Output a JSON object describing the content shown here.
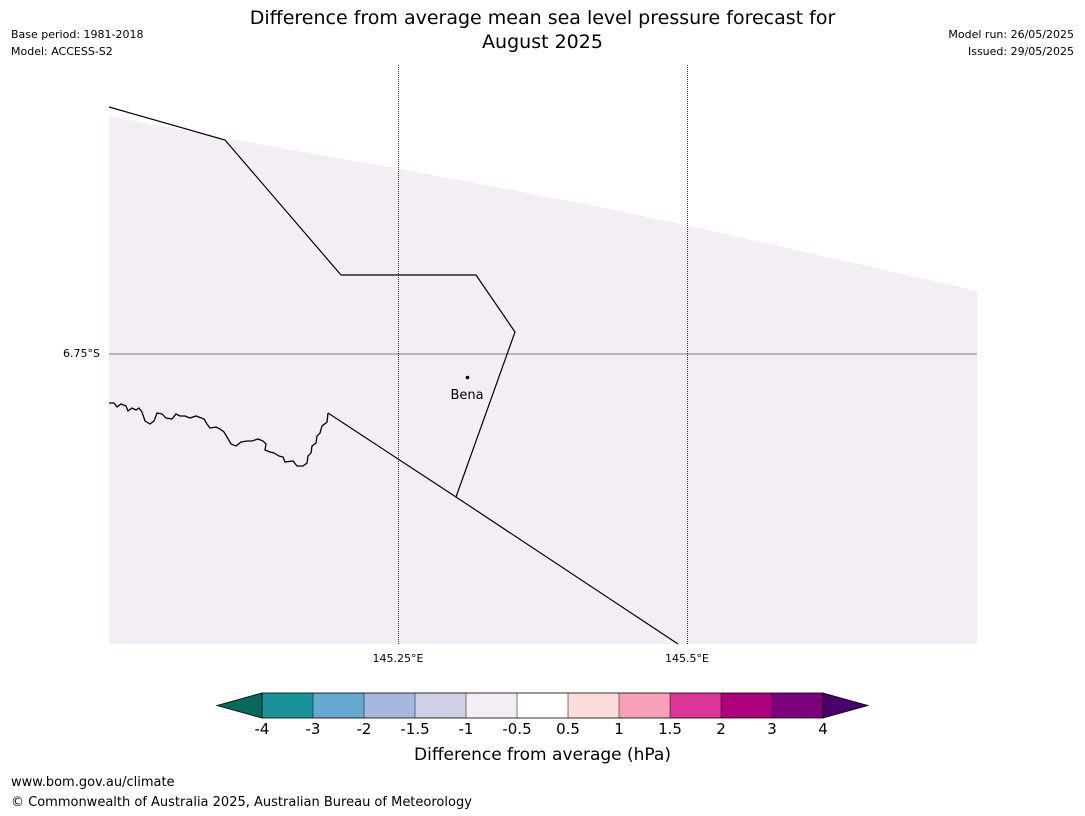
{
  "header": {
    "base_period": "Base period: 1981-2018",
    "model": "Model: ACCESS-S2",
    "title_line1": "Difference from average mean sea level pressure forecast for",
    "title_line2": "August 2025",
    "model_run": "Model run: 26/05/2025",
    "issued": "Issued: 29/05/2025"
  },
  "map": {
    "latitude_labels": [
      "6.75°S"
    ],
    "longitude_labels": [
      "145.25°E",
      "145.5°E"
    ],
    "places": [
      {
        "name": "Bena"
      }
    ],
    "shading_color": "#f4edf5",
    "shading_category": "-1 to -0.5"
  },
  "colorbar": {
    "label": "Difference from average (hPa)",
    "ticks": [
      "-4",
      "-3",
      "-2",
      "-1.5",
      "-1",
      "-0.5",
      "0.5",
      "1",
      "1.5",
      "2",
      "3",
      "4"
    ],
    "colors": [
      "#1b9299",
      "#67a8d0",
      "#a6b9dc",
      "#d0d0e4",
      "#f4edf5",
      "#ffffff",
      "#fddcdc",
      "#f8a0b7",
      "#dc3596",
      "#ad007c",
      "#7b007b"
    ],
    "under_color": "#036a5c",
    "over_color": "#48006a"
  },
  "footer": {
    "url": "www.bom.gov.au/climate",
    "copyright": "© Commonwealth of Australia 2025, Australian Bureau of Meteorology"
  }
}
